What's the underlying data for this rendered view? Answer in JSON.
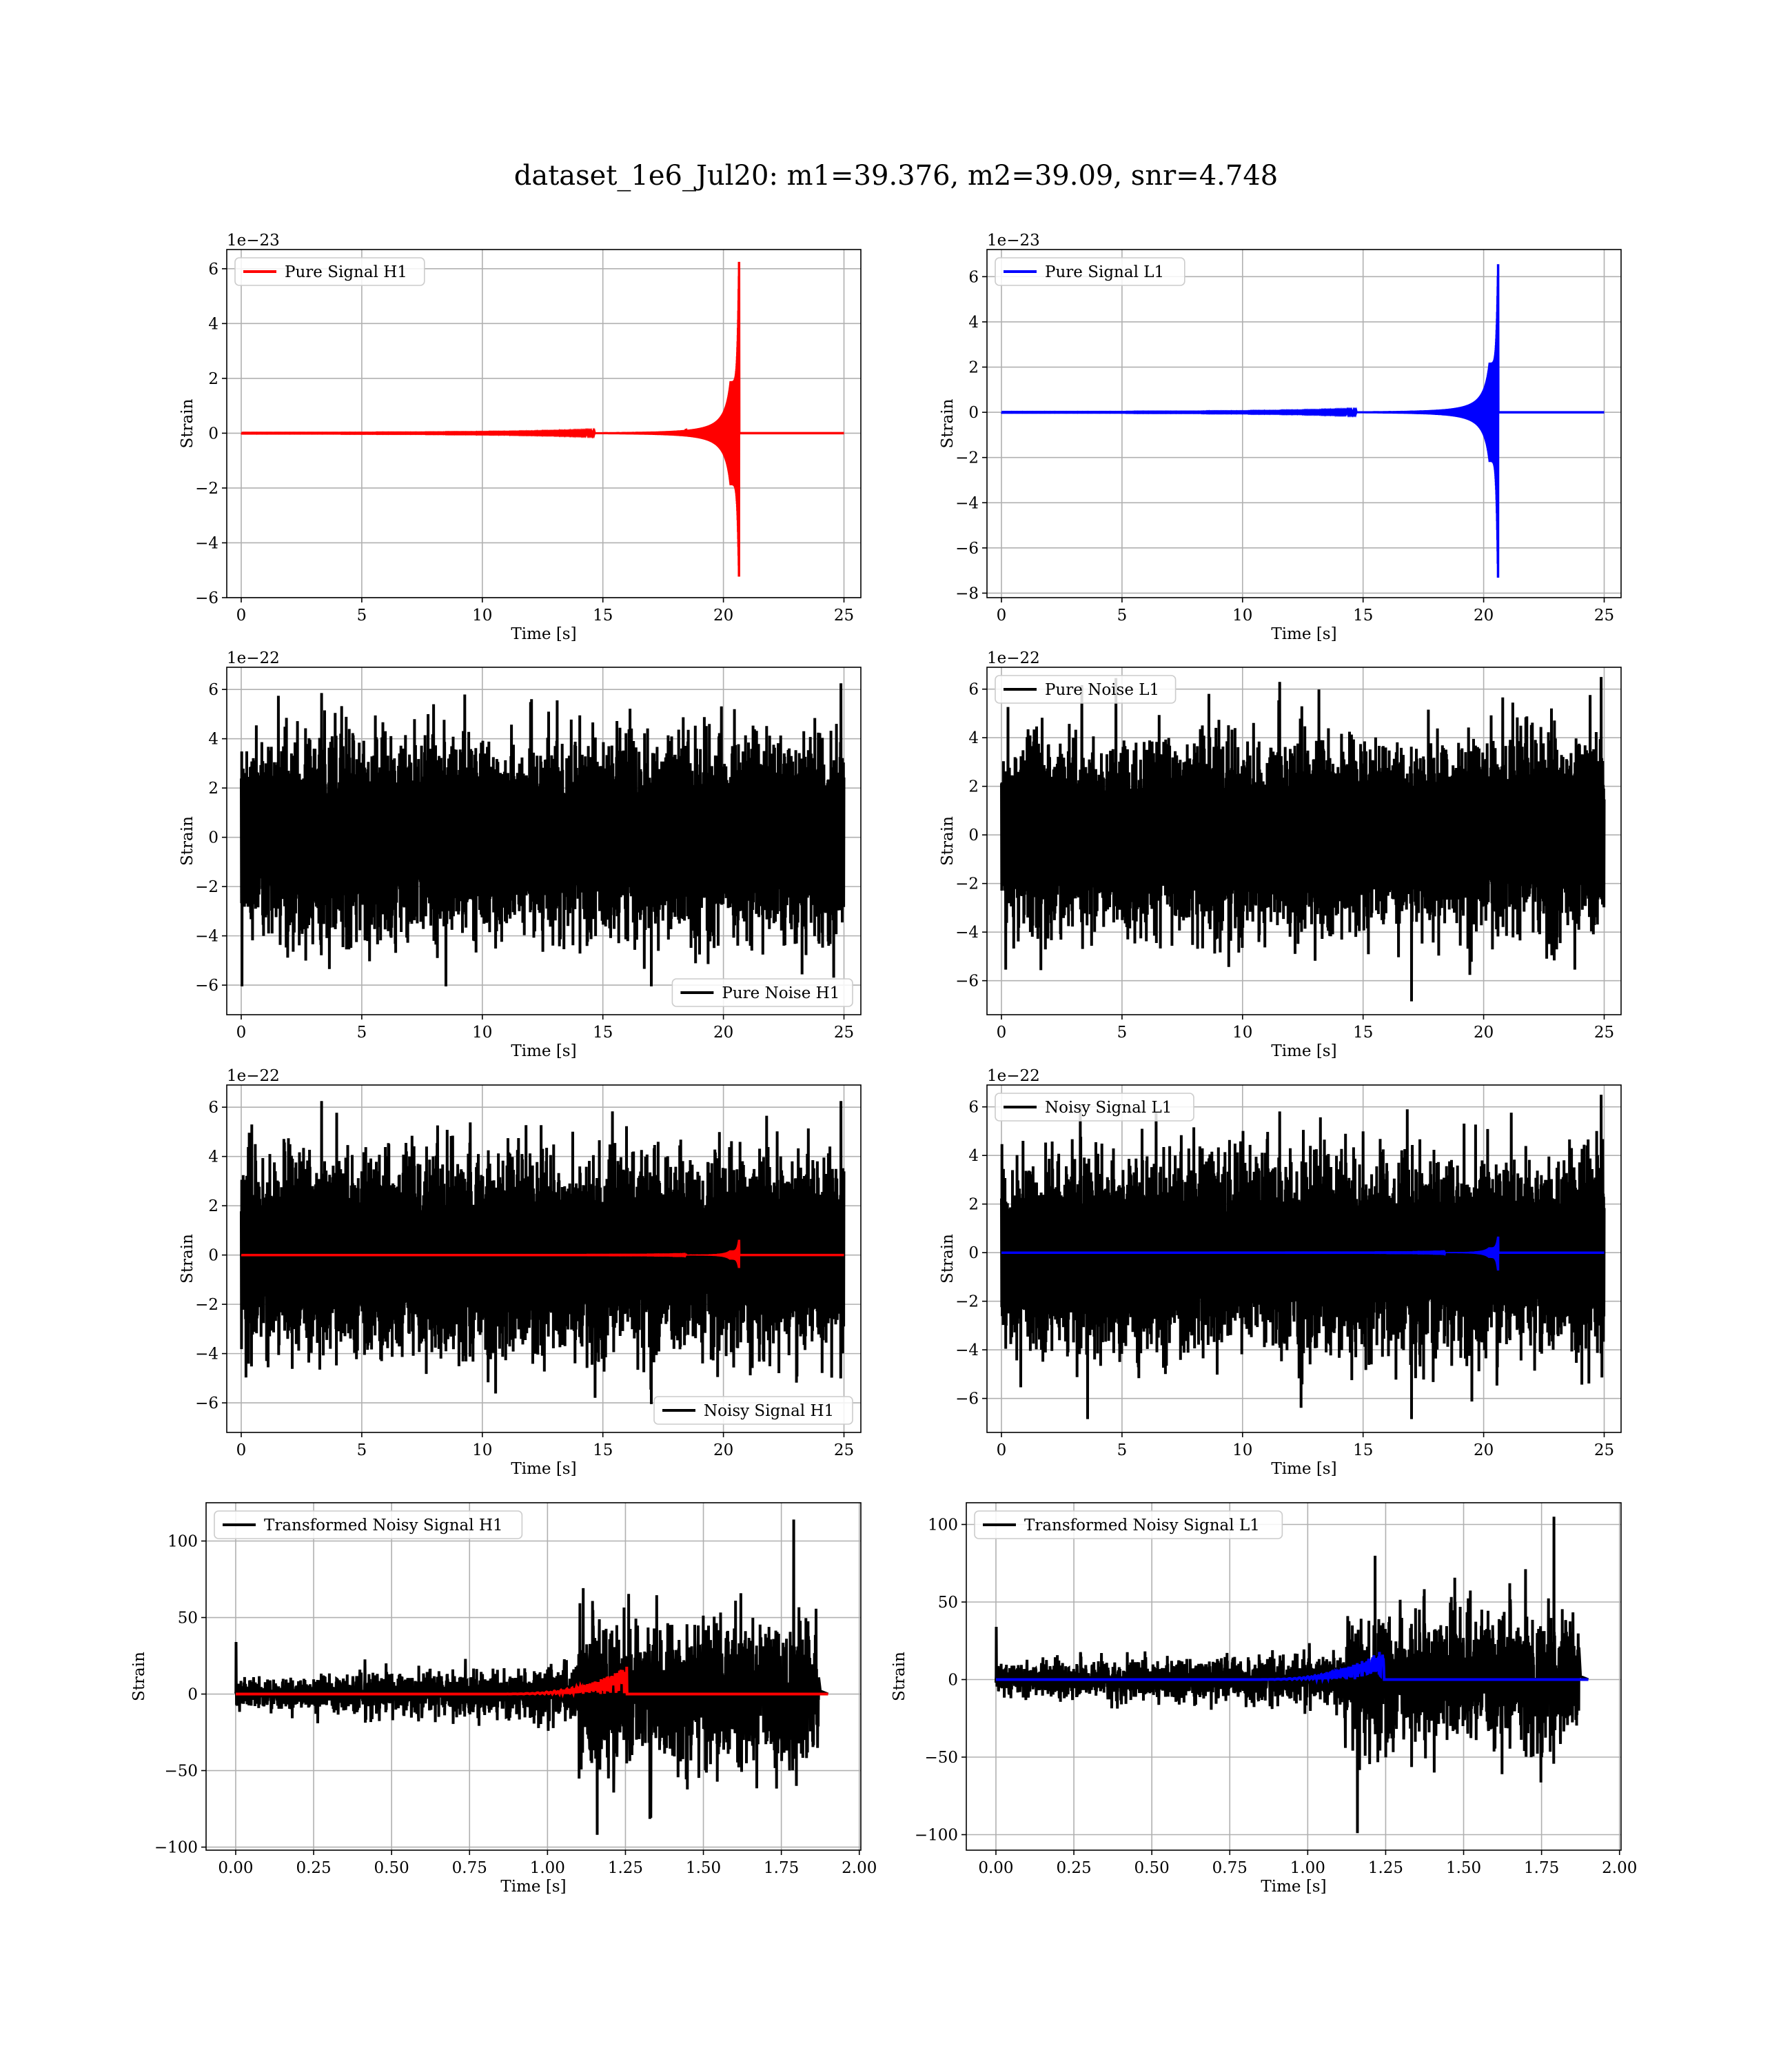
{
  "figure": {
    "title": "dataset_1e6_Jul20: m1=39.376, m2=39.09, snr=4.748"
  },
  "colors": {
    "h1_signal": "#ff0000",
    "l1_signal": "#0000ff",
    "noise": "#000000",
    "grid": "#b0b0b0",
    "frame": "#000000"
  },
  "chart_data": [
    {
      "id": "pure-signal-h1",
      "type": "line",
      "xlabel": "Time [s]",
      "ylabel": "Strain",
      "offset_text": "1e−23",
      "xlim": [
        -0.6,
        25.7
      ],
      "ylim": [
        -6,
        6.7
      ],
      "xticks": [
        0,
        5,
        10,
        15,
        20,
        25
      ],
      "yticks": [
        -6,
        -4,
        -2,
        0,
        2,
        4,
        6
      ],
      "xtick_labels": [
        "0",
        "5",
        "10",
        "15",
        "20",
        "25"
      ],
      "ytick_labels": [
        "−6",
        "−4",
        "−2",
        "0",
        "2",
        "4",
        "6"
      ],
      "legend_position": "upper-left",
      "grid": true,
      "series": [
        {
          "name": "Pure Signal H1",
          "color": "#ff0000",
          "kind": "chirp",
          "t_start": 0,
          "t_end": 25,
          "merger_time": 20.65,
          "upper_peak": 6.25,
          "lower_peak": -5.45,
          "plateau": 1.9
        }
      ]
    },
    {
      "id": "pure-signal-l1",
      "type": "line",
      "xlabel": "Time [s]",
      "ylabel": "Strain",
      "offset_text": "1e−23",
      "xlim": [
        -0.6,
        25.7
      ],
      "ylim": [
        -8.2,
        7.2
      ],
      "xticks": [
        0,
        5,
        10,
        15,
        20,
        25
      ],
      "yticks": [
        -8,
        -6,
        -4,
        -2,
        0,
        2,
        4,
        6
      ],
      "xtick_labels": [
        "0",
        "5",
        "10",
        "15",
        "20",
        "25"
      ],
      "ytick_labels": [
        "−8",
        "−6",
        "−4",
        "−2",
        "0",
        "2",
        "4",
        "6"
      ],
      "legend_position": "upper-left",
      "grid": true,
      "series": [
        {
          "name": "Pure Signal L1",
          "color": "#0000ff",
          "kind": "chirp",
          "t_start": 0,
          "t_end": 25,
          "merger_time": 20.6,
          "upper_peak": 6.55,
          "lower_peak": -7.65,
          "plateau": 2.2
        }
      ]
    },
    {
      "id": "pure-noise-h1",
      "type": "line",
      "xlabel": "Time [s]",
      "ylabel": "Strain",
      "offset_text": "1e−22",
      "xlim": [
        -0.6,
        25.7
      ],
      "ylim": [
        -7.2,
        6.9
      ],
      "xticks": [
        0,
        5,
        10,
        15,
        20,
        25
      ],
      "yticks": [
        -6,
        -4,
        -2,
        0,
        2,
        4,
        6
      ],
      "xtick_labels": [
        "0",
        "5",
        "10",
        "15",
        "20",
        "25"
      ],
      "ytick_labels": [
        "−6",
        "−4",
        "−2",
        "0",
        "2",
        "4",
        "6"
      ],
      "legend_position": "lower-right",
      "grid": true,
      "series": [
        {
          "name": "Pure Noise H1",
          "color": "#000000",
          "kind": "noise",
          "t_start": 0,
          "t_end": 25,
          "sigma": 1.45,
          "max": 6.25,
          "min": -6.05
        }
      ]
    },
    {
      "id": "pure-noise-l1",
      "type": "line",
      "xlabel": "Time [s]",
      "ylabel": "Strain",
      "offset_text": "1e−22",
      "xlim": [
        -0.6,
        25.7
      ],
      "ylim": [
        -7.4,
        6.9
      ],
      "xticks": [
        0,
        5,
        10,
        15,
        20,
        25
      ],
      "yticks": [
        -6,
        -4,
        -2,
        0,
        2,
        4,
        6
      ],
      "xtick_labels": [
        "0",
        "5",
        "10",
        "15",
        "20",
        "25"
      ],
      "ytick_labels": [
        "−6",
        "−4",
        "−2",
        "0",
        "2",
        "4",
        "6"
      ],
      "legend_position": "upper-left",
      "grid": true,
      "series": [
        {
          "name": "Pure Noise L1",
          "color": "#000000",
          "kind": "noise",
          "t_start": 0,
          "t_end": 25,
          "sigma": 1.45,
          "max": 6.5,
          "min": -6.85
        }
      ]
    },
    {
      "id": "noisy-signal-h1",
      "type": "line",
      "xlabel": "Time [s]",
      "ylabel": "Strain",
      "offset_text": "1e−22",
      "xlim": [
        -0.6,
        25.7
      ],
      "ylim": [
        -7.2,
        6.9
      ],
      "xticks": [
        0,
        5,
        10,
        15,
        20,
        25
      ],
      "yticks": [
        -6,
        -4,
        -2,
        0,
        2,
        4,
        6
      ],
      "xtick_labels": [
        "0",
        "5",
        "10",
        "15",
        "20",
        "25"
      ],
      "ytick_labels": [
        "−6",
        "−4",
        "−2",
        "0",
        "2",
        "4",
        "6"
      ],
      "legend_position": "lower-right",
      "grid": true,
      "series": [
        {
          "name": "Noisy Signal H1",
          "color": "#000000",
          "kind": "noise",
          "t_start": 0,
          "t_end": 25,
          "sigma": 1.45,
          "max": 6.25,
          "min": -6.05
        },
        {
          "name": "",
          "color": "#ff0000",
          "kind": "chirp",
          "t_start": 0,
          "t_end": 25,
          "merger_time": 20.65,
          "upper_peak": 0.62,
          "lower_peak": -0.55,
          "plateau": 0.19
        }
      ]
    },
    {
      "id": "noisy-signal-l1",
      "type": "line",
      "xlabel": "Time [s]",
      "ylabel": "Strain",
      "offset_text": "1e−22",
      "xlim": [
        -0.6,
        25.7
      ],
      "ylim": [
        -7.4,
        6.9
      ],
      "xticks": [
        0,
        5,
        10,
        15,
        20,
        25
      ],
      "yticks": [
        -6,
        -4,
        -2,
        0,
        2,
        4,
        6
      ],
      "xtick_labels": [
        "0",
        "5",
        "10",
        "15",
        "20",
        "25"
      ],
      "ytick_labels": [
        "−6",
        "−4",
        "−2",
        "0",
        "2",
        "4",
        "6"
      ],
      "legend_position": "upper-left",
      "grid": true,
      "series": [
        {
          "name": "Noisy Signal L1",
          "color": "#000000",
          "kind": "noise",
          "t_start": 0,
          "t_end": 25,
          "sigma": 1.45,
          "max": 6.5,
          "min": -6.85
        },
        {
          "name": "",
          "color": "#0000ff",
          "kind": "chirp",
          "t_start": 0,
          "t_end": 25,
          "merger_time": 20.6,
          "upper_peak": 0.66,
          "lower_peak": -0.77,
          "plateau": 0.22
        }
      ]
    },
    {
      "id": "transformed-noisy-signal-h1",
      "type": "line",
      "xlabel": "Time [s]",
      "ylabel": "Strain",
      "offset_text": "",
      "xlim": [
        -0.095,
        2.005
      ],
      "ylim": [
        -102,
        125
      ],
      "xticks": [
        0,
        0.25,
        0.5,
        0.75,
        1.0,
        1.25,
        1.5,
        1.75,
        2.0
      ],
      "yticks": [
        -100,
        -50,
        0,
        50,
        100
      ],
      "xtick_labels": [
        "0.00",
        "0.25",
        "0.50",
        "0.75",
        "1.00",
        "1.25",
        "1.50",
        "1.75",
        "2.00"
      ],
      "ytick_labels": [
        "−100",
        "−50",
        "0",
        "50",
        "100"
      ],
      "legend_position": "upper-left",
      "grid": true,
      "series": [
        {
          "name": "Transformed Noisy Signal H1",
          "color": "#000000",
          "kind": "whitened",
          "t_start": 0,
          "t_end": 1.9,
          "jump_time": 1.1,
          "end_time": 1.87,
          "pre_amp": 14,
          "post_amp": 75,
          "max": 114,
          "min": -92
        },
        {
          "name": "",
          "color": "#ff0000",
          "kind": "whitened-chirp",
          "t_start": 0,
          "t_end": 1.9,
          "merger_time": 1.255,
          "peak": 18,
          "trough": -13
        }
      ]
    },
    {
      "id": "transformed-noisy-signal-l1",
      "type": "line",
      "xlabel": "Time [s]",
      "ylabel": "Strain",
      "offset_text": "",
      "xlim": [
        -0.095,
        2.005
      ],
      "ylim": [
        -110,
        114
      ],
      "xticks": [
        0,
        0.25,
        0.5,
        0.75,
        1.0,
        1.25,
        1.5,
        1.75,
        2.0
      ],
      "yticks": [
        -100,
        -50,
        0,
        50,
        100
      ],
      "xtick_labels": [
        "0.00",
        "0.25",
        "0.50",
        "0.75",
        "1.00",
        "1.25",
        "1.50",
        "1.75",
        "2.00"
      ],
      "ytick_labels": [
        "−100",
        "−50",
        "0",
        "50",
        "100"
      ],
      "legend_position": "upper-left",
      "grid": true,
      "series": [
        {
          "name": "Transformed Noisy Signal L1",
          "color": "#000000",
          "kind": "whitened",
          "t_start": 0,
          "t_end": 1.9,
          "jump_time": 1.12,
          "end_time": 1.87,
          "pre_amp": 14,
          "post_amp": 68,
          "max": 105,
          "min": -99
        },
        {
          "name": "",
          "color": "#0000ff",
          "kind": "whitened-chirp",
          "t_start": 0,
          "t_end": 1.9,
          "merger_time": 1.245,
          "peak": 17,
          "trough": -20
        }
      ]
    }
  ]
}
